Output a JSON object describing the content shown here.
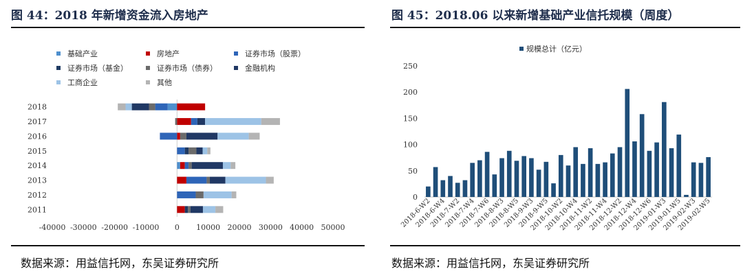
{
  "left": {
    "title": "图 44：2018 年新增资金流入房地产",
    "source": "数据来源：用益信托网，东吴证券研究所",
    "chart_data": {
      "type": "bar",
      "orientation": "horizontal",
      "stacked": true,
      "legend_placement": "top-left",
      "grid": false,
      "categories": [
        "2011",
        "2012",
        "2013",
        "2014",
        "2015",
        "2016",
        "2017",
        "2018"
      ],
      "xlim": [
        -40000,
        50000
      ],
      "xticks": [
        -40000,
        -30000,
        -20000,
        -10000,
        0,
        10000,
        20000,
        30000,
        40000,
        50000
      ],
      "series": [
        {
          "name": "基础产业",
          "color": "#4e8fcd",
          "values": [
            0,
            0,
            0,
            1000,
            0,
            0,
            0,
            -3000
          ]
        },
        {
          "name": "房地产",
          "color": "#c00000",
          "values": [
            2500,
            0,
            3000,
            1500,
            0,
            1000,
            4500,
            9000
          ]
        },
        {
          "name": "证券市场（股票）",
          "color": "#2e65b8",
          "values": [
            0,
            6000,
            6500,
            1200,
            2500,
            -5500,
            2000,
            -4000
          ]
        },
        {
          "name": "证券市场（基金）",
          "color": "#1f3a62",
          "values": [
            1000,
            0,
            0,
            0,
            1200,
            0,
            0,
            0
          ]
        },
        {
          "name": "证券市场（债券）",
          "color": "#6b6b6b",
          "values": [
            800,
            2500,
            1000,
            1000,
            2500,
            2000,
            -600,
            -2000
          ]
        },
        {
          "name": "金融机构",
          "color": "#203864",
          "values": [
            4000,
            0,
            5000,
            10000,
            2000,
            10000,
            2500,
            -5500
          ]
        },
        {
          "name": "工商企业",
          "color": "#9dc3e6",
          "values": [
            4000,
            9000,
            13000,
            2500,
            1500,
            10000,
            18000,
            -2000
          ]
        },
        {
          "name": "其他",
          "color": "#b4b4b4",
          "values": [
            2500,
            1500,
            2500,
            1500,
            1000,
            3500,
            6000,
            -2500
          ]
        }
      ]
    }
  },
  "right": {
    "title": "图 45：2018.06 以来新增基础产业信托规模（周度）",
    "source": "数据来源：用益信托网，东吴证券研究所",
    "chart_data": {
      "type": "bar",
      "color": "#1f4e79",
      "legend_placement": "top-center",
      "grid": false,
      "series_name": "规模总计（亿元）",
      "ylim": [
        0,
        250
      ],
      "yticks": [
        0,
        50,
        100,
        150,
        200,
        250
      ],
      "tick_labels": [
        "2018-6-W2",
        "2018-6-W4",
        "2018-7-W2",
        "2018-7-W4",
        "2018-7-W6",
        "2018-8-W3",
        "2018-8-W5",
        "2018-9-W3",
        "2018-9-W5",
        "2018-10-W2",
        "2018-10-W4",
        "2018-11-W2",
        "2018-11-W4",
        "2018-12-W2",
        "2018-12-W4",
        "2018-12-W6",
        "2019-01-W3",
        "2019-01-W5",
        "2019-02-W3",
        "2019-02-W5"
      ],
      "values": [
        20,
        57,
        32,
        40,
        27,
        32,
        65,
        70,
        86,
        43,
        74,
        88,
        69,
        78,
        74,
        52,
        67,
        26,
        80,
        60,
        95,
        63,
        93,
        63,
        66,
        83,
        95,
        206,
        106,
        158,
        88,
        104,
        181,
        93,
        119,
        4,
        66,
        65,
        76
      ]
    }
  }
}
